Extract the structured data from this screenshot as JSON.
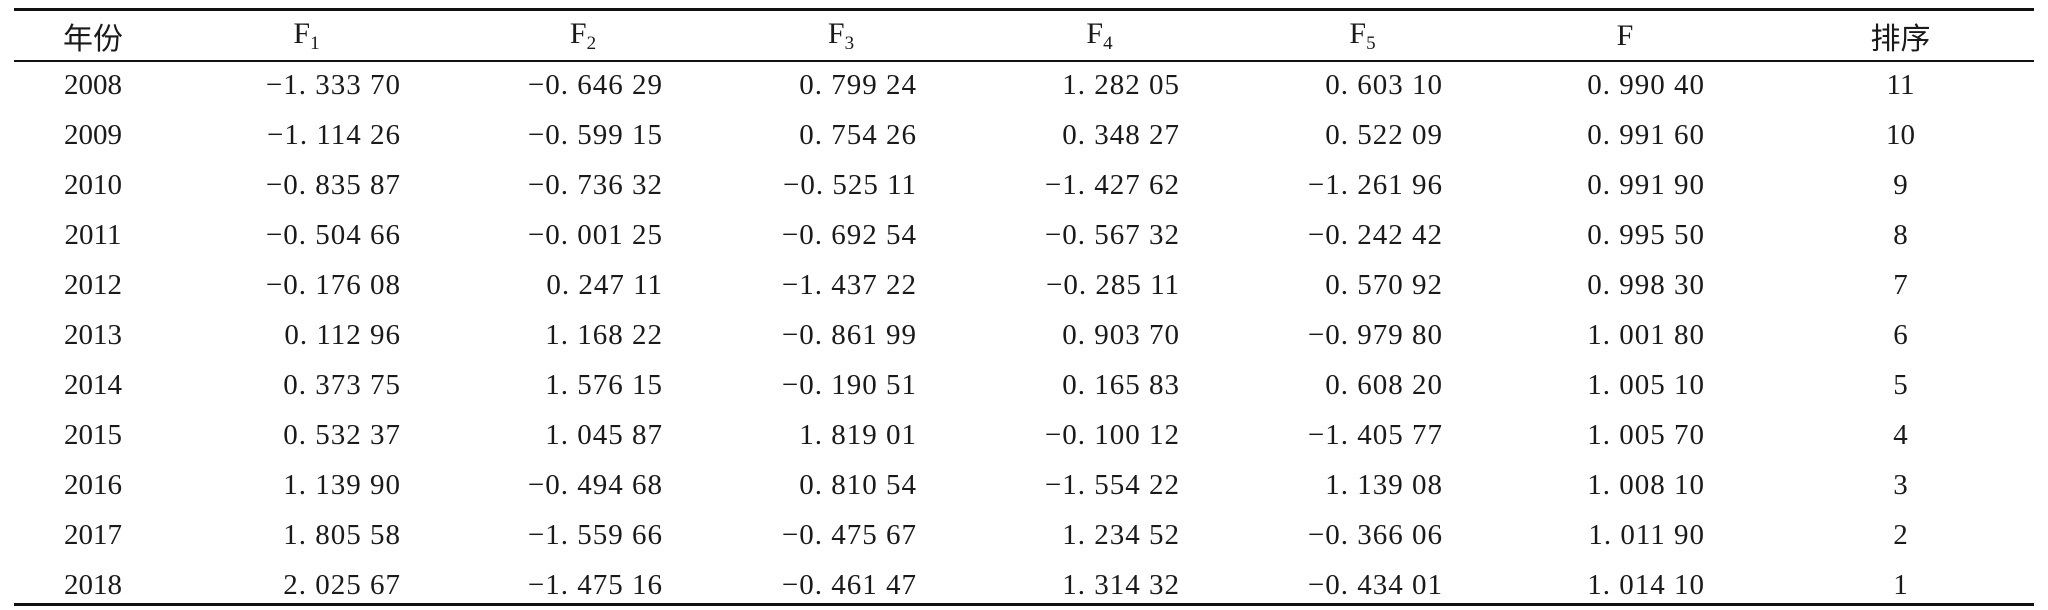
{
  "table": {
    "headers": {
      "year": "年份",
      "f1_base": "F",
      "f1_sub": "1",
      "f2_base": "F",
      "f2_sub": "2",
      "f3_base": "F",
      "f3_sub": "3",
      "f4_base": "F",
      "f4_sub": "4",
      "f5_base": "F",
      "f5_sub": "5",
      "f": "F",
      "rank": "排序"
    },
    "rows": [
      {
        "year": "2008",
        "f1": "−1. 333 70",
        "f2": "−0. 646 29",
        "f3": "0. 799 24",
        "f4": "1. 282 05",
        "f5": "0. 603 10",
        "f": "0. 990 40",
        "rank": "11"
      },
      {
        "year": "2009",
        "f1": "−1. 114 26",
        "f2": "−0. 599 15",
        "f3": "0. 754 26",
        "f4": "0. 348 27",
        "f5": "0. 522 09",
        "f": "0. 991 60",
        "rank": "10"
      },
      {
        "year": "2010",
        "f1": "−0. 835 87",
        "f2": "−0. 736 32",
        "f3": "−0. 525 11",
        "f4": "−1. 427 62",
        "f5": "−1. 261 96",
        "f": "0. 991 90",
        "rank": "9"
      },
      {
        "year": "2011",
        "f1": "−0. 504 66",
        "f2": "−0. 001 25",
        "f3": "−0. 692 54",
        "f4": "−0. 567 32",
        "f5": "−0. 242 42",
        "f": "0. 995 50",
        "rank": "8"
      },
      {
        "year": "2012",
        "f1": "−0. 176 08",
        "f2": "0. 247 11",
        "f3": "−1. 437 22",
        "f4": "−0. 285 11",
        "f5": "0. 570 92",
        "f": "0. 998 30",
        "rank": "7"
      },
      {
        "year": "2013",
        "f1": "0. 112 96",
        "f2": "1. 168 22",
        "f3": "−0. 861 99",
        "f4": "0. 903 70",
        "f5": "−0. 979 80",
        "f": "1. 001 80",
        "rank": "6"
      },
      {
        "year": "2014",
        "f1": "0. 373 75",
        "f2": "1. 576 15",
        "f3": "−0. 190 51",
        "f4": "0. 165 83",
        "f5": "0. 608 20",
        "f": "1. 005 10",
        "rank": "5"
      },
      {
        "year": "2015",
        "f1": "0. 532 37",
        "f2": "1. 045 87",
        "f3": "1. 819 01",
        "f4": "−0. 100 12",
        "f5": "−1. 405 77",
        "f": "1. 005 70",
        "rank": "4"
      },
      {
        "year": "2016",
        "f1": "1. 139 90",
        "f2": "−0. 494 68",
        "f3": "0. 810 54",
        "f4": "−1. 554 22",
        "f5": "1. 139 08",
        "f": "1. 008 10",
        "rank": "3"
      },
      {
        "year": "2017",
        "f1": "1. 805 58",
        "f2": "−1. 559 66",
        "f3": "−0. 475 67",
        "f4": "1. 234 52",
        "f5": "−0. 366 06",
        "f": "1. 011 90",
        "rank": "2"
      },
      {
        "year": "2018",
        "f1": "2. 025 67",
        "f2": "−1. 475 16",
        "f3": "−0. 461 47",
        "f4": "1. 314 32",
        "f5": "−0. 434 01",
        "f": "1. 014 10",
        "rank": "1"
      }
    ]
  }
}
